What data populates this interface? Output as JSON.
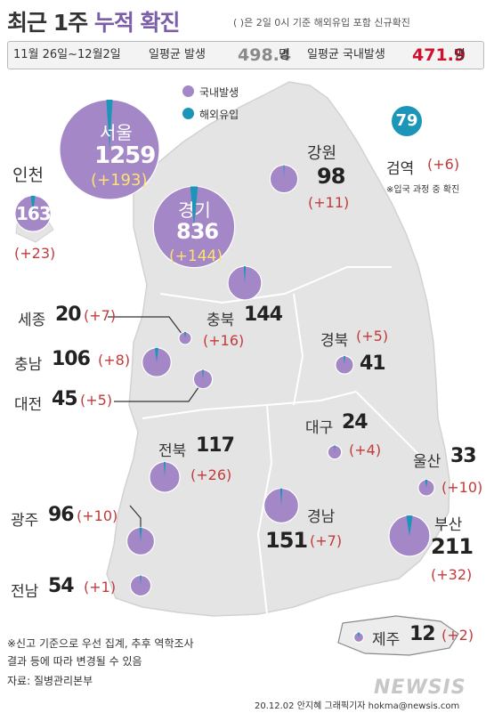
{
  "header": {
    "title_part1": "최근 1주",
    "title_part2": "누적 확진",
    "subtitle": "( )은 2일 0시 기준 해외유입 포함 신규확진"
  },
  "summary": {
    "date_range": "11월 26일~12월2일",
    "avg_label": "일평균 발생",
    "avg_value": "498.4",
    "avg_unit": "명",
    "dom_label": "일평균 국내발생",
    "dom_value": "471.9",
    "dom_unit": "명"
  },
  "legend": {
    "domestic": "국내발생",
    "imported": "해외유입",
    "domestic_color": "#a387c7",
    "imported_color": "#1b95b8"
  },
  "quarantine": {
    "count": "79",
    "label": "검역",
    "increase": "(+6)",
    "note": "※입국 과정 중 확진"
  },
  "regions": [
    {
      "id": "seoul",
      "name": "서울",
      "count": "1259",
      "increase": "(+193)"
    },
    {
      "id": "incheon",
      "name": "인천",
      "count": "163",
      "increase": "(+23)"
    },
    {
      "id": "gyeonggi",
      "name": "경기",
      "count": "836",
      "increase": "(+144)"
    },
    {
      "id": "gangwon",
      "name": "강원",
      "count": "98",
      "increase": "(+11)"
    },
    {
      "id": "sejong",
      "name": "세종",
      "count": "20",
      "increase": "(+7)"
    },
    {
      "id": "chungbuk",
      "name": "충북",
      "count": "144",
      "increase": "(+16)"
    },
    {
      "id": "chungnam",
      "name": "충남",
      "count": "106",
      "increase": "(+8)"
    },
    {
      "id": "daejeon",
      "name": "대전",
      "count": "45",
      "increase": "(+5)"
    },
    {
      "id": "gyeongbuk",
      "name": "경북",
      "count": "41",
      "increase": "(+5)"
    },
    {
      "id": "daegu",
      "name": "대구",
      "count": "24",
      "increase": "(+4)"
    },
    {
      "id": "jeonbuk",
      "name": "전북",
      "count": "117",
      "increase": "(+26)"
    },
    {
      "id": "ulsan",
      "name": "울산",
      "count": "33",
      "increase": "(+10)"
    },
    {
      "id": "gwangju",
      "name": "광주",
      "count": "96",
      "increase": "(+10)"
    },
    {
      "id": "gyeongnam",
      "name": "경남",
      "count": "151",
      "increase": "(+7)"
    },
    {
      "id": "busan",
      "name": "부산",
      "count": "211",
      "increase": "(+32)"
    },
    {
      "id": "jeonnam",
      "name": "전남",
      "count": "54",
      "increase": "(+1)"
    },
    {
      "id": "jeju",
      "name": "제주",
      "count": "12",
      "increase": "(+2)"
    }
  ],
  "footnote": {
    "line1": "※신고 기준으로 우선 집계, 추후 역학조사",
    "line2": "결과 등에 따라 변경될 수 있음",
    "source": "자료: 질병관리본부"
  },
  "credit": "20.12.02 안지혜 그래픽기자 hokma@newsis.com",
  "logo": "NEWSIS"
}
